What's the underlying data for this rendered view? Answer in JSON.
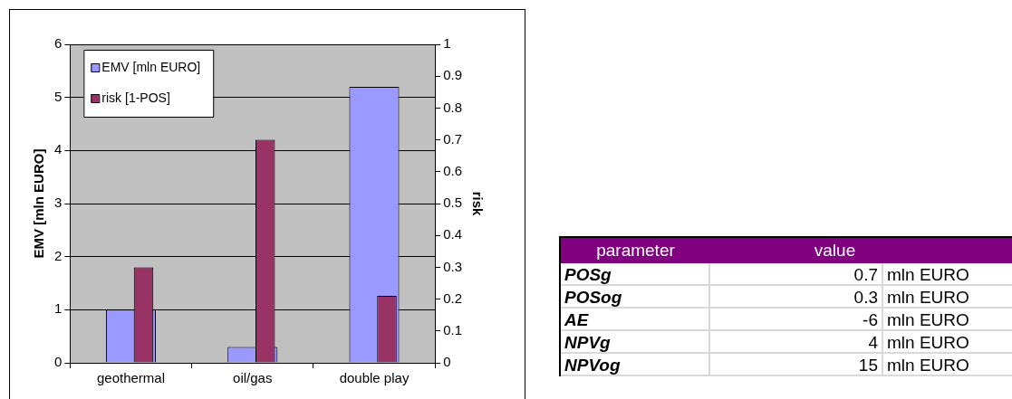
{
  "chart_data": [
    {
      "type": "bar",
      "categories": [
        "geothermal",
        "oil/gas",
        "double play"
      ],
      "series": [
        {
          "name": "EMV [mln EURO]",
          "color": "#9999ff",
          "values": [
            1,
            0.3,
            5.2
          ]
        },
        {
          "name": "risk [1-POS]",
          "color": "#993366",
          "values": [
            0.3,
            0.7,
            0.21
          ],
          "axis": "y2"
        }
      ],
      "ylabel": "EMV [mln EURO]",
      "y2label": "risk",
      "ylim": [
        0,
        6
      ],
      "yticks": [
        0,
        1,
        2,
        3,
        4,
        5,
        6
      ],
      "y2lim": [
        0,
        1
      ],
      "y2ticks": [
        0,
        0.1,
        0.2,
        0.3,
        0.4,
        0.5,
        0.6,
        0.7,
        0.8,
        0.9,
        1
      ],
      "grid": "y",
      "legend": "top left"
    },
    {
      "type": "other",
      "annotations": [
        "parameter",
        "value",
        "POSg",
        "0.7",
        "mln EURO",
        "POSog",
        "0.3",
        "mln EURO",
        "AE",
        "-6",
        "mln EURO",
        "NPVg",
        "4",
        "mln EURO",
        "NPVog",
        "15",
        "mln EURO"
      ]
    }
  ]
}
